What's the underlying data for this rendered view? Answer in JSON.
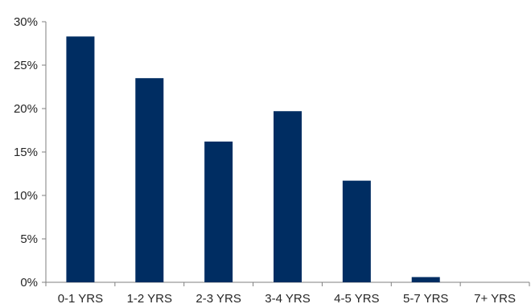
{
  "chart_data": {
    "type": "bar",
    "title": "",
    "xlabel": "",
    "ylabel": "",
    "categories": [
      "0-1 YRS",
      "1-2 YRS",
      "2-3 YRS",
      "3-4 YRS",
      "4-5 YRS",
      "5-7 YRS",
      "7+ YRS"
    ],
    "values": [
      28.3,
      23.5,
      16.2,
      19.7,
      11.7,
      0.6,
      0
    ],
    "ylim": [
      0,
      30
    ],
    "yticks": [
      0,
      5,
      10,
      15,
      20,
      25,
      30
    ],
    "ytick_labels": [
      "0%",
      "5%",
      "10%",
      "15%",
      "20%",
      "25%",
      "30%"
    ],
    "grid": false,
    "legend": "none",
    "bar_color": "#002D62",
    "axis_color": "#7F7F7F",
    "text_color": "#262626"
  }
}
